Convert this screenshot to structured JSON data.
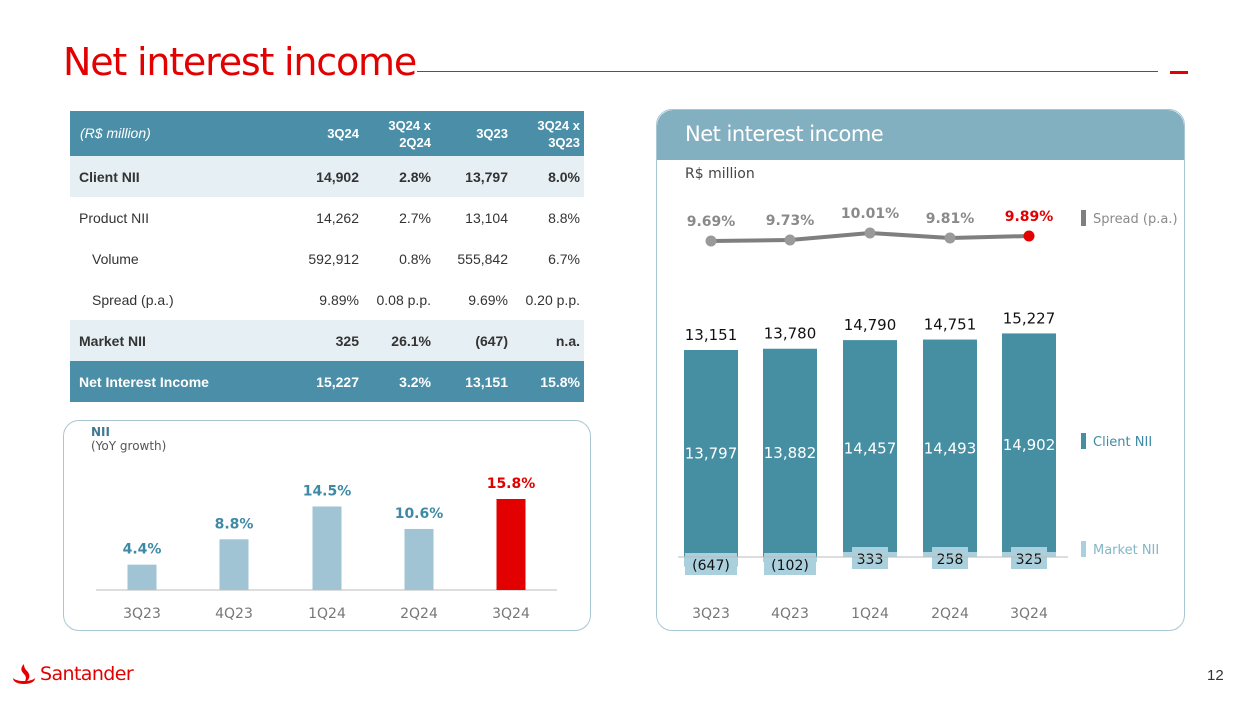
{
  "page": {
    "title": "Net interest income",
    "page_number": "12",
    "brand": "Santander"
  },
  "table": {
    "headers": [
      "(R$ million)",
      "3Q24",
      "3Q24 x 2Q24",
      "3Q23",
      "3Q24 x 3Q23"
    ],
    "rows": [
      {
        "style": "light",
        "indent": false,
        "cells": [
          "Client NII",
          "14,902",
          "2.8%",
          "13,797",
          "8.0%"
        ]
      },
      {
        "style": "plain",
        "indent": false,
        "cells": [
          "Product NII",
          "14,262",
          "2.7%",
          "13,104",
          "8.8%"
        ]
      },
      {
        "style": "plain",
        "indent": true,
        "cells": [
          "Volume",
          "592,912",
          "0.8%",
          "555,842",
          "6.7%"
        ]
      },
      {
        "style": "plain",
        "indent": true,
        "cells": [
          "Spread (p.a.)",
          "9.89%",
          "0.08 p.p.",
          "9.69%",
          "0.20 p.p."
        ]
      },
      {
        "style": "light",
        "indent": false,
        "cells": [
          "Market NII",
          "325",
          "26.1%",
          "(647)",
          "n.a."
        ]
      },
      {
        "style": "total",
        "indent": false,
        "cells": [
          "Net Interest Income",
          "15,227",
          "3.2%",
          "13,151",
          "15.8%"
        ]
      }
    ]
  },
  "yoy_panel": {
    "title": "NII",
    "subtitle": "(YoY growth)"
  },
  "right_panel": {
    "title": "Net interest income",
    "unit": "R$ million"
  },
  "colors": {
    "accent": "#e20000",
    "header_blue": "#4b8ea8",
    "client_bar": "#468fa2",
    "market_bar": "#a9d0dc",
    "yoy_bar": "#a0c4d3",
    "spread_line": "#8a8a8a"
  },
  "chart_data": [
    {
      "id": "yoy",
      "type": "bar",
      "title": "NII (YoY growth)",
      "categories": [
        "3Q23",
        "4Q23",
        "1Q24",
        "2Q24",
        "3Q24"
      ],
      "values": [
        4.4,
        8.8,
        14.5,
        10.6,
        15.8
      ],
      "labels": [
        "4.4%",
        "8.8%",
        "14.5%",
        "10.6%",
        "15.8%"
      ],
      "highlight_index": 4,
      "ylim": [
        0,
        16
      ]
    },
    {
      "id": "nii",
      "type": "bar",
      "title": "Net interest income",
      "ylabel": "R$ million",
      "categories": [
        "3Q23",
        "4Q23",
        "1Q24",
        "2Q24",
        "3Q24"
      ],
      "series": [
        {
          "name": "Client NII",
          "values": [
            13797,
            13882,
            14457,
            14493,
            14902
          ],
          "labels": [
            "13,797",
            "13,882",
            "14,457",
            "14,493",
            "14,902"
          ]
        },
        {
          "name": "Market NII",
          "values": [
            -647,
            -102,
            333,
            258,
            325
          ],
          "labels": [
            "(647)",
            "(102)",
            "333",
            "258",
            "325"
          ]
        }
      ],
      "totals": [
        13151,
        13780,
        14790,
        14751,
        15227
      ],
      "total_labels": [
        "13,151",
        "13,780",
        "14,790",
        "14,751",
        "15,227"
      ],
      "spread": {
        "name": "Spread (p.a.)",
        "values": [
          9.69,
          9.73,
          10.01,
          9.81,
          9.89
        ],
        "labels": [
          "9.69%",
          "9.73%",
          "10.01%",
          "9.81%",
          "9.89%"
        ],
        "highlight_index": 4
      },
      "legend": [
        "Spread (p.a.)",
        "Client NII",
        "Market NII"
      ],
      "legend_position": "right"
    }
  ]
}
